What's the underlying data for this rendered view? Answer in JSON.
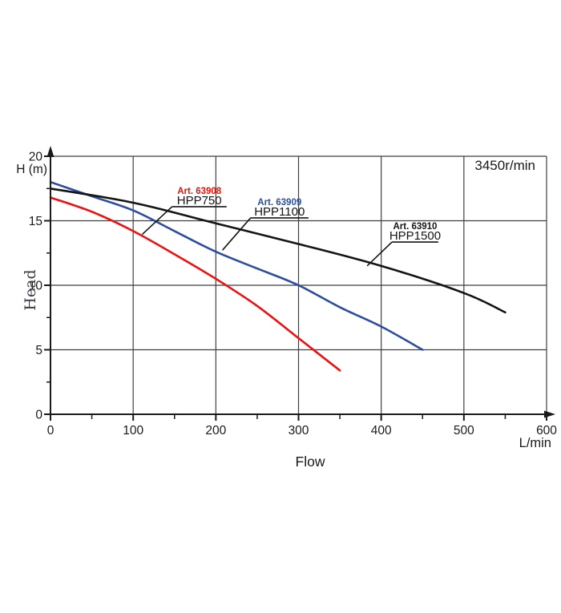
{
  "page": {
    "background": "#ffffff"
  },
  "chart_data": {
    "type": "line",
    "rpm_label": "3450r/min",
    "xlabel": "Flow",
    "x_unit": "L/min",
    "ylabel": "Head",
    "y_axis_title": "H (m)",
    "xlim": [
      0,
      600
    ],
    "ylim": [
      0,
      20
    ],
    "x_major_ticks": [
      0,
      100,
      200,
      300,
      400,
      500,
      600
    ],
    "x_minor_ticks": [
      50,
      150,
      250,
      350,
      450,
      550
    ],
    "y_major_ticks": [
      0,
      5,
      10,
      15,
      20
    ],
    "y_minor_ticks": [
      2.5,
      7.5,
      12.5,
      17.5
    ],
    "grid": true,
    "grid_color": "#3f3f3f",
    "axis_color": "#1a1a1a",
    "text_color": "#1a1a1a",
    "ylabel_color": "#3c3c46",
    "series": [
      {
        "name": "HPP750",
        "art": "Art. 63908",
        "color": "#ee1010",
        "points": [
          [
            0,
            16.8
          ],
          [
            50,
            15.7
          ],
          [
            100,
            14.2
          ],
          [
            150,
            12.4
          ],
          [
            200,
            10.5
          ],
          [
            250,
            8.4
          ],
          [
            300,
            5.9
          ],
          [
            350,
            3.4
          ]
        ]
      },
      {
        "name": "HPP1100",
        "art": "Art. 63909",
        "color": "#2d4d9e",
        "points": [
          [
            0,
            18.0
          ],
          [
            50,
            16.9
          ],
          [
            100,
            15.8
          ],
          [
            150,
            14.2
          ],
          [
            200,
            12.6
          ],
          [
            250,
            11.3
          ],
          [
            300,
            10.0
          ],
          [
            350,
            8.3
          ],
          [
            400,
            6.8
          ],
          [
            450,
            5.0
          ]
        ]
      },
      {
        "name": "HPP1500",
        "art": "Art. 63910",
        "color": "#141414",
        "points": [
          [
            0,
            17.5
          ],
          [
            100,
            16.4
          ],
          [
            200,
            14.8
          ],
          [
            300,
            13.2
          ],
          [
            400,
            11.5
          ],
          [
            500,
            9.4
          ],
          [
            550,
            7.9
          ]
        ]
      }
    ],
    "annotations": [
      {
        "art": "Art. 63908",
        "model": "HPP750",
        "art_color": "#e8140c",
        "model_color": "#141414",
        "underline": {
          "x1": 147,
          "x2": 213,
          "y": 16.09
        },
        "leader_to": {
          "x": 111,
          "y": 13.95
        }
      },
      {
        "art": "Art. 63909",
        "model": "HPP1100",
        "art_color": "#2d4d9e",
        "model_color": "#141414",
        "underline": {
          "x1": 242,
          "x2": 312,
          "y": 15.22
        },
        "leader_to": {
          "x": 208,
          "y": 12.72
        }
      },
      {
        "art": "Art. 63910",
        "model": "HPP1500",
        "art_color": "#141414",
        "model_color": "#141414",
        "underline": {
          "x1": 413,
          "x2": 469,
          "y": 13.35
        },
        "leader_to": {
          "x": 383,
          "y": 11.5
        }
      }
    ]
  }
}
